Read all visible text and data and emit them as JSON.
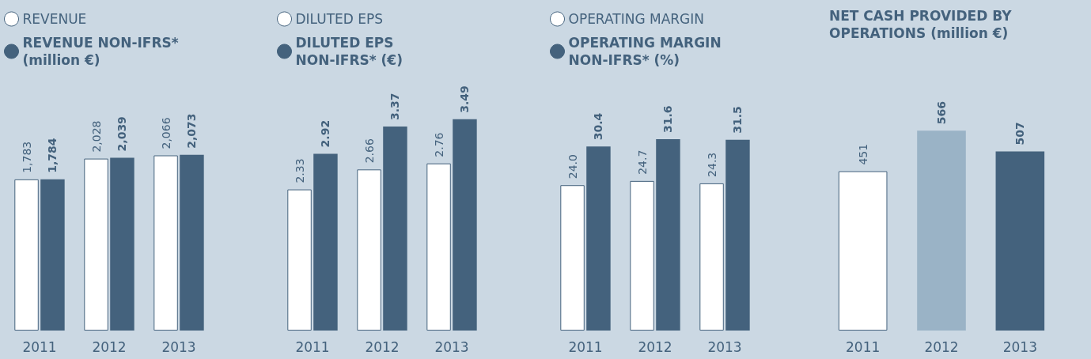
{
  "chart_data": [
    {
      "type": "bar",
      "categories": [
        "2011",
        "2012",
        "2013"
      ],
      "legend": "top left",
      "series": [
        {
          "name": "REVENUE",
          "color": "#ffffff",
          "values": [
            1783,
            2028,
            2066
          ],
          "value_labels": [
            "1,783",
            "2,028",
            "2,066"
          ]
        },
        {
          "name": "REVENUE NON-IFRS* (million €)",
          "color": "#44627d",
          "values": [
            1784,
            2039,
            2073
          ],
          "value_labels": [
            "1,784",
            "2,039",
            "2,073"
          ]
        }
      ]
    },
    {
      "type": "bar",
      "categories": [
        "2011",
        "2012",
        "2013"
      ],
      "legend": "top left",
      "series": [
        {
          "name": "DILUTED EPS",
          "color": "#ffffff",
          "values": [
            2.33,
            2.66,
            2.76
          ],
          "value_labels": [
            "2.33",
            "2.66",
            "2.76"
          ]
        },
        {
          "name": "DILUTED EPS NON-IFRS* (€)",
          "color": "#44627d",
          "values": [
            2.92,
            3.37,
            3.49
          ],
          "value_labels": [
            "2.92",
            "3.37",
            "3.49"
          ]
        }
      ]
    },
    {
      "type": "bar",
      "categories": [
        "2011",
        "2012",
        "2013"
      ],
      "legend": "top left",
      "series": [
        {
          "name": "OPERATING MARGIN",
          "color": "#ffffff",
          "values": [
            24.0,
            24.7,
            24.3
          ],
          "value_labels": [
            "24.0",
            "24.7",
            "24.3"
          ]
        },
        {
          "name": "OPERATING MARGIN NON-IFRS* (%)",
          "color": "#44627d",
          "values": [
            30.4,
            31.6,
            31.5
          ],
          "value_labels": [
            "30.4",
            "31.6",
            "31.5"
          ]
        }
      ]
    },
    {
      "type": "bar",
      "title": "NET CASH PROVIDED BY OPERATIONS (million €)",
      "categories": [
        "2011",
        "2012",
        "2013"
      ],
      "series": [
        {
          "colors": [
            "#ffffff",
            "#9ab3c6",
            "#44627d"
          ],
          "values": [
            451,
            566,
            507
          ],
          "value_labels": [
            "451",
            "566",
            "507"
          ]
        }
      ]
    }
  ]
}
